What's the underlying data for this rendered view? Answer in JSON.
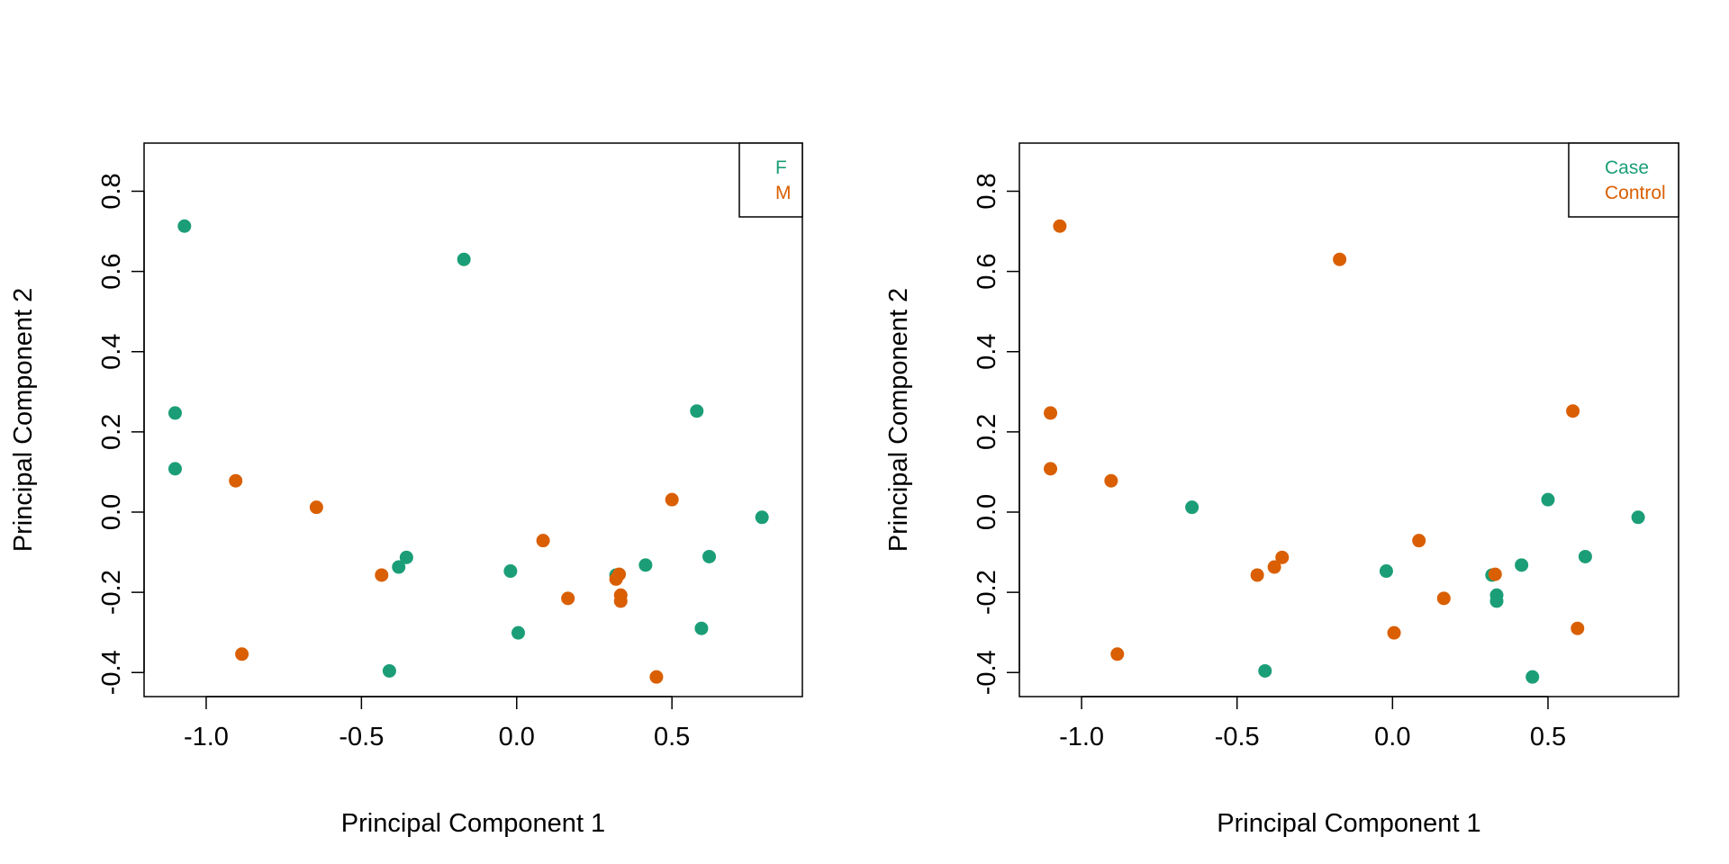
{
  "colors": {
    "green": "#1b9e77",
    "orange": "#d95f02"
  },
  "chart_data": [
    {
      "type": "scatter",
      "xlabel": "Principal Component 1",
      "ylabel": "Principal Component 2",
      "xlim": [
        -1.2,
        0.92
      ],
      "ylim": [
        -0.46,
        0.92
      ],
      "xticks": [
        -1.0,
        -0.5,
        0.0,
        0.5
      ],
      "xtick_labels": [
        "-1.0",
        "-0.5",
        "0.0",
        "0.5"
      ],
      "yticks": [
        -0.4,
        -0.2,
        0.0,
        0.2,
        0.4,
        0.6,
        0.8
      ],
      "ytick_labels": [
        "-0.4",
        "-0.2",
        "0.0",
        "0.2",
        "0.4",
        "0.6",
        "0.8"
      ],
      "legend_position": "top-right",
      "series": [
        {
          "name": "F",
          "color": "#1b9e77",
          "points": [
            [
              -1.07,
              0.713
            ],
            [
              -1.1,
              0.247
            ],
            [
              -1.1,
              0.108
            ],
            [
              -0.17,
              0.63
            ],
            [
              -0.38,
              -0.137
            ],
            [
              -0.355,
              -0.113
            ],
            [
              -0.41,
              -0.396
            ],
            [
              -0.02,
              -0.147
            ],
            [
              0.005,
              -0.301
            ],
            [
              0.32,
              -0.157
            ],
            [
              0.415,
              -0.132
            ],
            [
              0.58,
              0.252
            ],
            [
              0.595,
              -0.29
            ],
            [
              0.62,
              -0.111
            ],
            [
              0.79,
              -0.013
            ]
          ]
        },
        {
          "name": "M",
          "color": "#d95f02",
          "points": [
            [
              -0.905,
              0.078
            ],
            [
              -0.885,
              -0.354
            ],
            [
              -0.645,
              0.012
            ],
            [
              -0.435,
              -0.157
            ],
            [
              0.085,
              -0.071
            ],
            [
              0.165,
              -0.215
            ],
            [
              0.32,
              -0.167
            ],
            [
              0.33,
              -0.155
            ],
            [
              0.335,
              -0.207
            ],
            [
              0.335,
              -0.222
            ],
            [
              0.45,
              -0.411
            ],
            [
              0.5,
              0.031
            ]
          ]
        }
      ]
    },
    {
      "type": "scatter",
      "xlabel": "Principal Component 1",
      "ylabel": "Principal Component 2",
      "xlim": [
        -1.2,
        0.92
      ],
      "ylim": [
        -0.46,
        0.92
      ],
      "xticks": [
        -1.0,
        -0.5,
        0.0,
        0.5
      ],
      "xtick_labels": [
        "-1.0",
        "-0.5",
        "0.0",
        "0.5"
      ],
      "yticks": [
        -0.4,
        -0.2,
        0.0,
        0.2,
        0.4,
        0.6,
        0.8
      ],
      "ytick_labels": [
        "-0.4",
        "-0.2",
        "0.0",
        "0.2",
        "0.4",
        "0.6",
        "0.8"
      ],
      "legend_position": "top-right",
      "series": [
        {
          "name": "Case",
          "color": "#1b9e77",
          "points": [
            [
              -0.645,
              0.012
            ],
            [
              -0.41,
              -0.396
            ],
            [
              -0.02,
              -0.147
            ],
            [
              0.32,
              -0.157
            ],
            [
              0.335,
              -0.207
            ],
            [
              0.335,
              -0.222
            ],
            [
              0.415,
              -0.132
            ],
            [
              0.45,
              -0.411
            ],
            [
              0.5,
              0.031
            ],
            [
              0.62,
              -0.111
            ],
            [
              0.79,
              -0.013
            ]
          ]
        },
        {
          "name": "Control",
          "color": "#d95f02",
          "points": [
            [
              -1.07,
              0.713
            ],
            [
              -1.1,
              0.247
            ],
            [
              -1.1,
              0.108
            ],
            [
              -0.905,
              0.078
            ],
            [
              -0.885,
              -0.354
            ],
            [
              -0.17,
              0.63
            ],
            [
              -0.435,
              -0.157
            ],
            [
              -0.38,
              -0.137
            ],
            [
              -0.355,
              -0.113
            ],
            [
              0.005,
              -0.301
            ],
            [
              0.085,
              -0.071
            ],
            [
              0.165,
              -0.215
            ],
            [
              0.33,
              -0.155
            ],
            [
              0.58,
              0.252
            ],
            [
              0.595,
              -0.29
            ]
          ]
        }
      ]
    }
  ]
}
